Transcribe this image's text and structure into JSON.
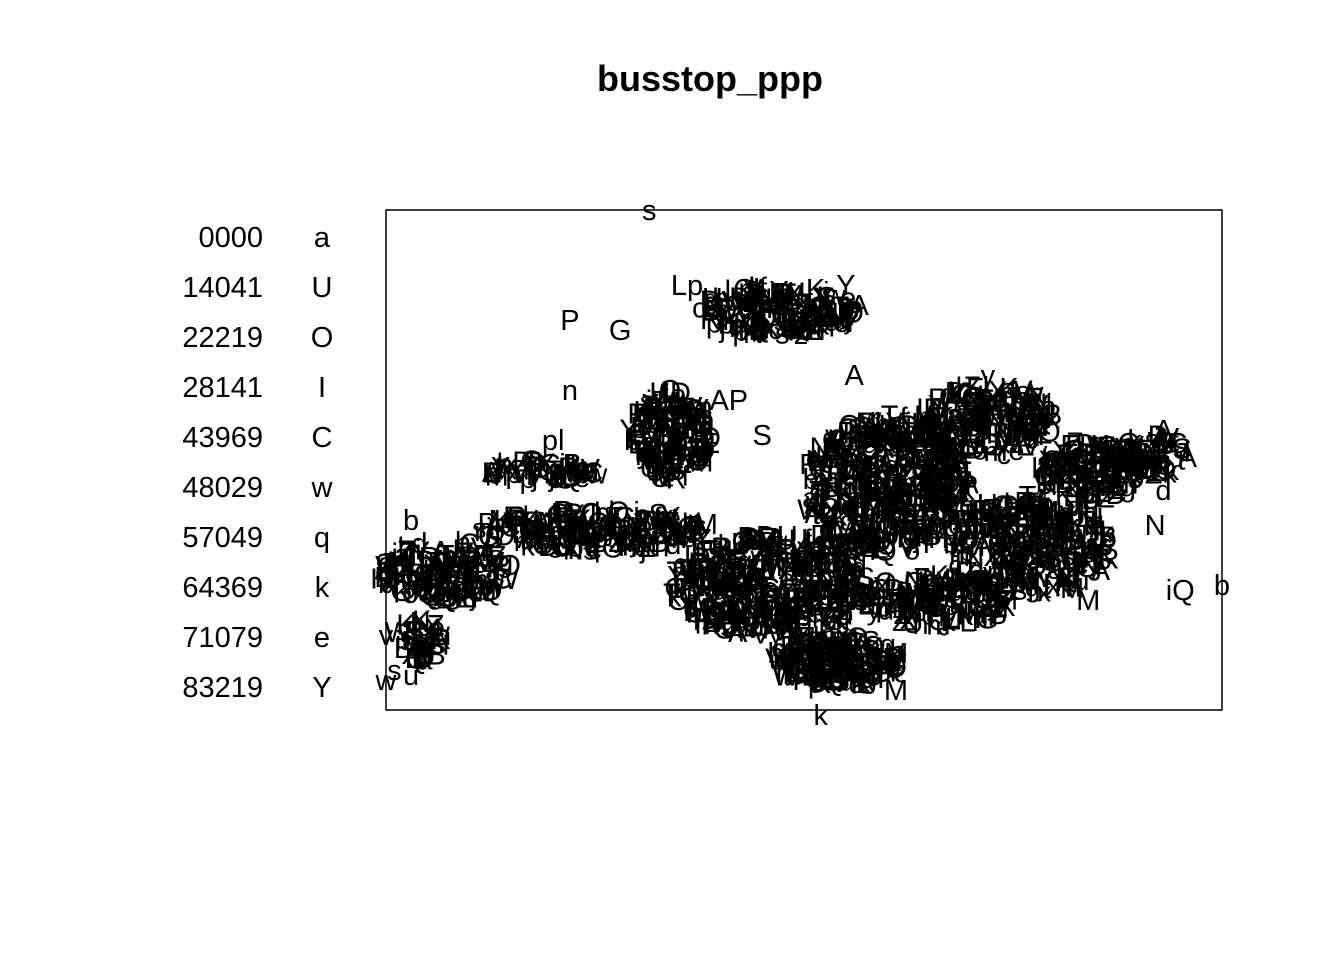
{
  "chart_data": {
    "type": "scatter",
    "title": "busstop_ppp",
    "legend": {
      "placement": "left",
      "entries": [
        {
          "value": "0000",
          "symbol": "a"
        },
        {
          "value": "14041",
          "symbol": "U"
        },
        {
          "value": "22219",
          "symbol": "O"
        },
        {
          "value": "28141",
          "symbol": "I"
        },
        {
          "value": "43969",
          "symbol": "C"
        },
        {
          "value": "48029",
          "symbol": "w"
        },
        {
          "value": "57049",
          "symbol": "q"
        },
        {
          "value": "64369",
          "symbol": "k"
        },
        {
          "value": "71079",
          "symbol": "e"
        },
        {
          "value": "83219",
          "symbol": "Y"
        }
      ]
    },
    "xlim": [
      0,
      100
    ],
    "ylim": [
      0,
      100
    ],
    "axes_shown": false,
    "grid": false,
    "frame": true,
    "points_note_markers": "letters",
    "points": [
      {
        "x": 31.5,
        "y": 100,
        "m": "s"
      },
      {
        "x": 52,
        "y": -1,
        "m": "k"
      },
      {
        "x": 36,
        "y": 85,
        "m": "Lp"
      },
      {
        "x": 55,
        "y": 85,
        "m": "Y"
      },
      {
        "x": 22,
        "y": 78,
        "m": "P"
      },
      {
        "x": 28,
        "y": 76,
        "m": "G"
      },
      {
        "x": 41,
        "y": 62,
        "m": "AP"
      },
      {
        "x": 56,
        "y": 67,
        "m": "A"
      },
      {
        "x": 72,
        "y": 67,
        "m": "y"
      },
      {
        "x": 93,
        "y": 56,
        "m": "A"
      },
      {
        "x": 94,
        "y": 48,
        "m": "k"
      },
      {
        "x": 93,
        "y": 44,
        "m": "d"
      },
      {
        "x": 92,
        "y": 37,
        "m": "N"
      },
      {
        "x": 95,
        "y": 24,
        "m": "iQ"
      },
      {
        "x": 100,
        "y": 25,
        "m": "b"
      },
      {
        "x": 84,
        "y": 22,
        "m": "M"
      },
      {
        "x": 61,
        "y": 4,
        "m": "M"
      },
      {
        "x": 61,
        "y": 9,
        "m": "S"
      },
      {
        "x": 3,
        "y": 38,
        "m": "b"
      },
      {
        "x": 0,
        "y": 6,
        "m": "w"
      },
      {
        "x": 1,
        "y": 8,
        "m": "s"
      },
      {
        "x": 3,
        "y": 7,
        "m": "u"
      },
      {
        "x": 0,
        "y": 15,
        "m": "v"
      },
      {
        "x": 14,
        "y": 38,
        "m": "K"
      },
      {
        "x": 20,
        "y": 54,
        "m": "pl"
      },
      {
        "x": 22,
        "y": 64,
        "m": "n"
      },
      {
        "x": 45,
        "y": 55,
        "m": "S"
      },
      {
        "x": 52,
        "y": 35,
        "m": "D"
      },
      {
        "x": 46,
        "y": 22,
        "m": "e"
      },
      {
        "x": 70,
        "y": 26,
        "m": "e"
      }
    ],
    "dense_regions_note": "clusters drawn procedurally",
    "clusters": [
      {
        "cx": 47,
        "cy": 80,
        "rx": 10,
        "ry": 5,
        "n": 180
      },
      {
        "cx": 34,
        "cy": 55,
        "rx": 5,
        "ry": 9,
        "n": 160
      },
      {
        "cx": 19,
        "cy": 48,
        "rx": 7,
        "ry": 2,
        "n": 60
      },
      {
        "cx": 25,
        "cy": 36,
        "rx": 14,
        "ry": 4,
        "n": 200
      },
      {
        "cx": 7,
        "cy": 28,
        "rx": 8,
        "ry": 6,
        "n": 150
      },
      {
        "cx": 4,
        "cy": 14,
        "rx": 3,
        "ry": 4,
        "n": 40
      },
      {
        "cx": 46,
        "cy": 25,
        "rx": 12,
        "ry": 10,
        "n": 400
      },
      {
        "cx": 54,
        "cy": 10,
        "rx": 8,
        "ry": 5,
        "n": 200
      },
      {
        "cx": 60,
        "cy": 45,
        "rx": 10,
        "ry": 14,
        "n": 450
      },
      {
        "cx": 72,
        "cy": 58,
        "rx": 8,
        "ry": 7,
        "n": 180
      },
      {
        "cx": 77,
        "cy": 33,
        "rx": 10,
        "ry": 10,
        "n": 280
      },
      {
        "cx": 84,
        "cy": 48,
        "rx": 6,
        "ry": 6,
        "n": 130
      },
      {
        "cx": 92,
        "cy": 51,
        "rx": 4,
        "ry": 4,
        "n": 60
      },
      {
        "cx": 66,
        "cy": 22,
        "rx": 9,
        "ry": 5,
        "n": 150
      }
    ]
  }
}
